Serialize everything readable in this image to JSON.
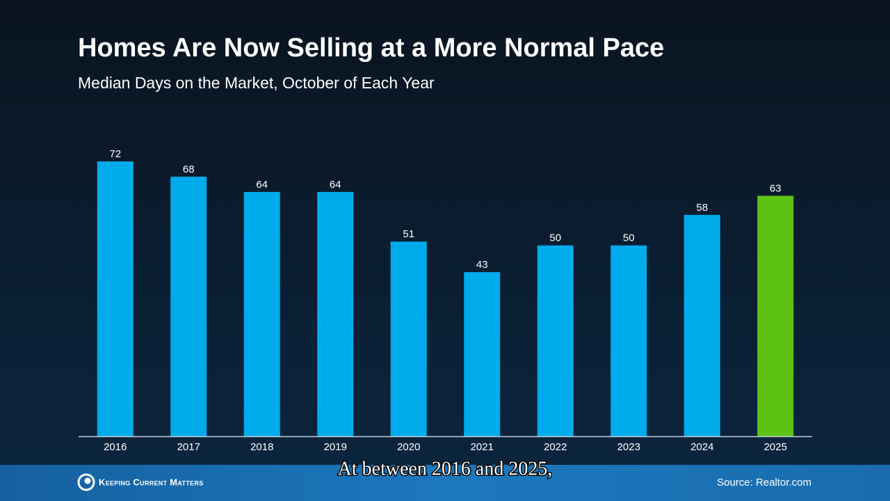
{
  "chart_data": {
    "type": "bar",
    "title": "Homes Are Now Selling at a More Normal Pace",
    "subtitle": "Median Days on the Market, October of Each Year",
    "categories": [
      "2016",
      "2017",
      "2018",
      "2019",
      "2020",
      "2021",
      "2022",
      "2023",
      "2024",
      "2025"
    ],
    "values": [
      72,
      68,
      64,
      64,
      51,
      43,
      50,
      50,
      58,
      63
    ],
    "colors": [
      "#00abeb",
      "#00abeb",
      "#00abeb",
      "#00abeb",
      "#00abeb",
      "#00abeb",
      "#00abeb",
      "#00abeb",
      "#00abeb",
      "#5dc214"
    ],
    "source": "Source: Realtor.com"
  },
  "footer": {
    "brand": "Keeping Current Matters"
  },
  "caption": "At between 2016 and 2025,"
}
